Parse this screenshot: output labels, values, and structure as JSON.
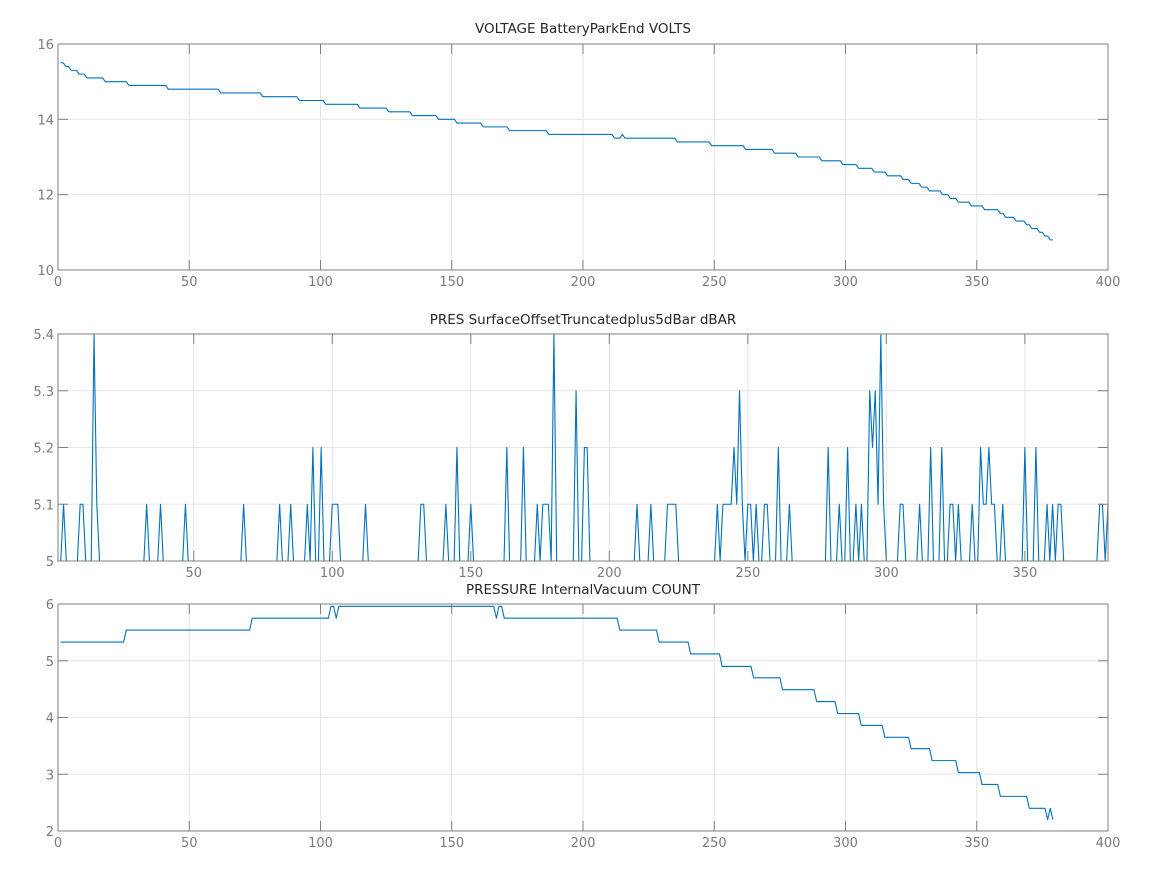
{
  "chart_data": [
    {
      "type": "line",
      "title": "VOLTAGE BatteryParkEnd VOLTS",
      "xlabel": "",
      "ylabel": "",
      "xlim": [
        0,
        400
      ],
      "ylim": [
        10,
        16
      ],
      "xticks": [
        0,
        50,
        100,
        150,
        200,
        250,
        300,
        350,
        400
      ],
      "yticks": [
        10,
        12,
        14,
        16
      ],
      "grid": true,
      "color": "#0072bd",
      "encoding": "steps: [x_start, value] held until next step start",
      "x_last": 379,
      "steps": [
        [
          1,
          15.5
        ],
        [
          3,
          15.4
        ],
        [
          5,
          15.3
        ],
        [
          8,
          15.2
        ],
        [
          11,
          15.1
        ],
        [
          18,
          15.0
        ],
        [
          27,
          14.9
        ],
        [
          42,
          14.8
        ],
        [
          62,
          14.7
        ],
        [
          78,
          14.6
        ],
        [
          92,
          14.5
        ],
        [
          102,
          14.4
        ],
        [
          115,
          14.3
        ],
        [
          126,
          14.2
        ],
        [
          135,
          14.1
        ],
        [
          145,
          14.0
        ],
        [
          152,
          13.9
        ],
        [
          162,
          13.8
        ],
        [
          172,
          13.7
        ],
        [
          187,
          13.6
        ],
        [
          212,
          13.5
        ],
        [
          215,
          13.6
        ],
        [
          216,
          13.5
        ],
        [
          236,
          13.4
        ],
        [
          249,
          13.3
        ],
        [
          262,
          13.2
        ],
        [
          273,
          13.1
        ],
        [
          282,
          13.0
        ],
        [
          291,
          12.9
        ],
        [
          299,
          12.8
        ],
        [
          305,
          12.7
        ],
        [
          311,
          12.6
        ],
        [
          316,
          12.5
        ],
        [
          322,
          12.4
        ],
        [
          325,
          12.3
        ],
        [
          329,
          12.2
        ],
        [
          332,
          12.1
        ],
        [
          337,
          12.0
        ],
        [
          340,
          11.9
        ],
        [
          343,
          11.8
        ],
        [
          348,
          11.7
        ],
        [
          353,
          11.6
        ],
        [
          359,
          11.5
        ],
        [
          361,
          11.4
        ],
        [
          365,
          11.3
        ],
        [
          369,
          11.2
        ],
        [
          371,
          11.1
        ],
        [
          374,
          11.0
        ],
        [
          376,
          10.9
        ],
        [
          378,
          10.8
        ]
      ]
    },
    {
      "type": "line",
      "title": "PRES SurfaceOffsetTruncatedplus5dBar dBAR",
      "xlabel": "",
      "ylabel": "",
      "xlim": [
        1,
        380
      ],
      "ylim": [
        5,
        5.4
      ],
      "xticks": [
        50,
        100,
        150,
        200,
        250,
        300,
        350
      ],
      "yticks": [
        5,
        5.1,
        5.2,
        5.3,
        5.4
      ],
      "grid": true,
      "color": "#0072bd",
      "encoding": "x = 1..380, value = baseline unless overridden",
      "x_first": 1,
      "x_last": 380,
      "baseline": 5,
      "overrides": {
        "3": 5.1,
        "9": 5.1,
        "10": 5.1,
        "14": 5.4,
        "15": 5.1,
        "33": 5.1,
        "38": 5.1,
        "47": 5.1,
        "68": 5.1,
        "81": 5.1,
        "85": 5.1,
        "91": 5.1,
        "93": 5.2,
        "96": 5.2,
        "100": 5.1,
        "101": 5.1,
        "102": 5.1,
        "112": 5.1,
        "132": 5.1,
        "133": 5.1,
        "141": 5.1,
        "145": 5.2,
        "150": 5.1,
        "163": 5.2,
        "169": 5.2,
        "174": 5.1,
        "176": 5.1,
        "177": 5.1,
        "178": 5.1,
        "180": 5.4,
        "188": 5.3,
        "191": 5.2,
        "192": 5.2,
        "210": 5.1,
        "215": 5.1,
        "221": 5.1,
        "222": 5.1,
        "223": 5.1,
        "224": 5.1,
        "239": 5.1,
        "241": 5.1,
        "242": 5.1,
        "243": 5.1,
        "244": 5.1,
        "245": 5.2,
        "246": 5.1,
        "247": 5.3,
        "248": 5.1,
        "250": 5.1,
        "251": 5.1,
        "253": 5.1,
        "256": 5.1,
        "257": 5.1,
        "261": 5.2,
        "265": 5.1,
        "279": 5.2,
        "283": 5.1,
        "286": 5.2,
        "289": 5.1,
        "291": 5.1,
        "294": 5.3,
        "295": 5.2,
        "296": 5.3,
        "297": 5.1,
        "298": 5.4,
        "299": 5.1,
        "305": 5.1,
        "306": 5.1,
        "312": 5.1,
        "316": 5.2,
        "320": 5.2,
        "323": 5.1,
        "324": 5.1,
        "326": 5.1,
        "331": 5.1,
        "334": 5.2,
        "335": 5.1,
        "336": 5.1,
        "337": 5.2,
        "338": 5.1,
        "339": 5.1,
        "342": 5.1,
        "350": 5.2,
        "354": 5.2,
        "358": 5.1,
        "360": 5.1,
        "362": 5.1,
        "363": 5.1,
        "377": 5.1,
        "378": 5.1,
        "380": 5.1
      }
    },
    {
      "type": "line",
      "title": "PRESSURE InternalVacuum COUNT",
      "xlabel": "",
      "ylabel": "",
      "xlim": [
        0,
        400
      ],
      "ylim": [
        2,
        6
      ],
      "xticks": [
        0,
        50,
        100,
        150,
        200,
        250,
        300,
        350,
        400
      ],
      "yticks": [
        2,
        3,
        4,
        5,
        6
      ],
      "grid": true,
      "color": "#0072bd",
      "encoding": "steps: [x_start, value] held until next step start",
      "x_last": 379,
      "steps": [
        [
          1,
          5.33
        ],
        [
          26,
          5.54
        ],
        [
          74,
          5.75
        ],
        [
          104,
          5.96
        ],
        [
          106,
          5.75
        ],
        [
          107,
          5.96
        ],
        [
          167,
          5.75
        ],
        [
          168,
          5.96
        ],
        [
          170,
          5.75
        ],
        [
          214,
          5.54
        ],
        [
          229,
          5.33
        ],
        [
          241,
          5.12
        ],
        [
          253,
          4.9
        ],
        [
          265,
          4.7
        ],
        [
          276,
          4.49
        ],
        [
          289,
          4.28
        ],
        [
          297,
          4.07
        ],
        [
          306,
          3.86
        ],
        [
          315,
          3.65
        ],
        [
          325,
          3.45
        ],
        [
          333,
          3.24
        ],
        [
          343,
          3.03
        ],
        [
          352,
          2.82
        ],
        [
          359,
          2.61
        ],
        [
          370,
          2.4
        ],
        [
          377,
          2.2
        ],
        [
          378,
          2.4
        ],
        [
          379,
          2.2
        ]
      ]
    }
  ]
}
